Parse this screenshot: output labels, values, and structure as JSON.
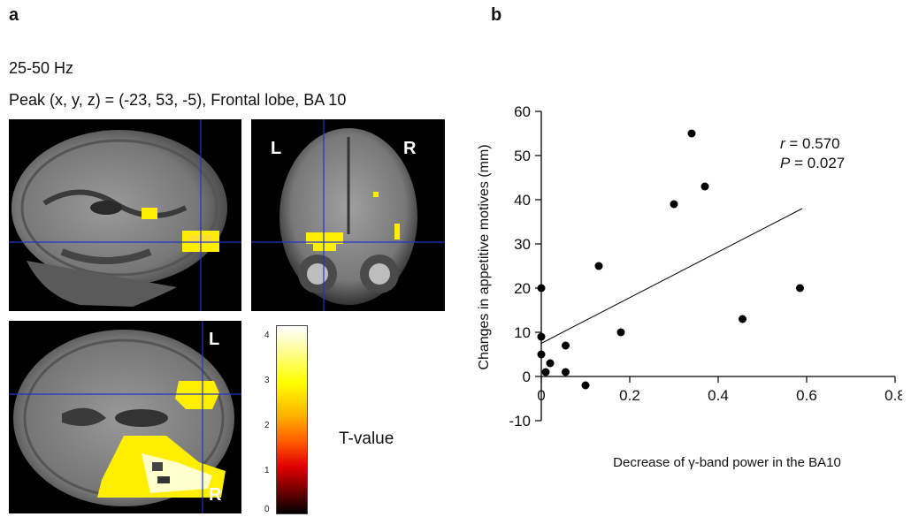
{
  "panel_a": {
    "letter": "a",
    "freq_band": "25-50 Hz",
    "peak_text": "Peak (x, y, z) = (-23, 53, -5), Frontal lobe, BA 10",
    "coronal_left": "L",
    "coronal_right": "R",
    "axial_top": "L",
    "axial_bottom": "R",
    "colorbar_ticks": [
      "4",
      "3",
      "2",
      "1",
      "0"
    ],
    "colorbar_label": "T-value"
  },
  "panel_b": {
    "letter": "b"
  },
  "chart_data": {
    "type": "scatter",
    "xlabel": "Decrease of γ-band power in the BA10",
    "ylabel": "Changes in appetitive motives (mm)",
    "xlim": [
      0,
      0.8
    ],
    "ylim": [
      -10,
      60
    ],
    "xticks": [
      "0",
      "0.2",
      "0.4",
      "0.6",
      "0.8"
    ],
    "yticks": [
      "-10",
      "0",
      "10",
      "20",
      "30",
      "40",
      "50",
      "60"
    ],
    "annotation_r": "r = 0.570",
    "annotation_p": "P = 0.027",
    "points": [
      {
        "x": 0.0,
        "y": 20
      },
      {
        "x": 0.0,
        "y": 9
      },
      {
        "x": 0.0,
        "y": 5
      },
      {
        "x": 0.01,
        "y": 1
      },
      {
        "x": 0.02,
        "y": 3
      },
      {
        "x": 0.055,
        "y": 7
      },
      {
        "x": 0.055,
        "y": 1
      },
      {
        "x": 0.1,
        "y": -2
      },
      {
        "x": 0.13,
        "y": 25
      },
      {
        "x": 0.18,
        "y": 10
      },
      {
        "x": 0.3,
        "y": 39
      },
      {
        "x": 0.34,
        "y": 55
      },
      {
        "x": 0.37,
        "y": 43
      },
      {
        "x": 0.455,
        "y": 13
      },
      {
        "x": 0.585,
        "y": 20
      }
    ],
    "fit_line": [
      {
        "x": 0.0,
        "y": 7.5
      },
      {
        "x": 0.59,
        "y": 38
      }
    ],
    "grid": false,
    "legend": "none"
  }
}
